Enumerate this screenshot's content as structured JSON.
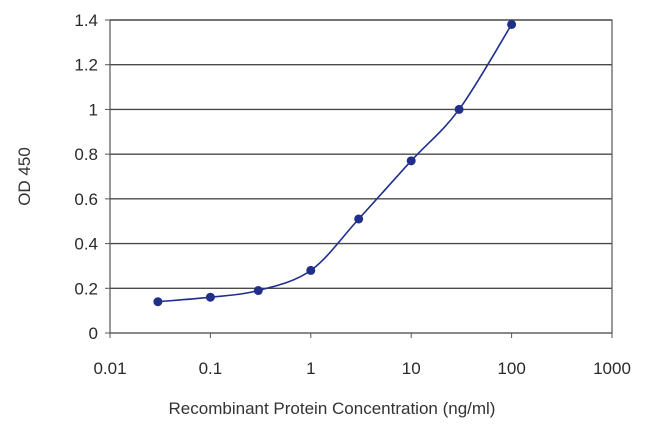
{
  "chart_data": {
    "type": "line",
    "title": "",
    "xlabel": "Recombinant Protein Concentration (ng/ml)",
    "ylabel": "OD 450",
    "x_scale": "log",
    "xlim": [
      0.01,
      1000
    ],
    "ylim": [
      0,
      1.4
    ],
    "x_ticks": [
      0.01,
      0.1,
      1,
      10,
      100,
      1000
    ],
    "x_tick_labels": [
      "0.01",
      "0.1",
      "1",
      "10",
      "100",
      "1000"
    ],
    "y_ticks": [
      0,
      0.2,
      0.4,
      0.6,
      0.8,
      1,
      1.2,
      1.4
    ],
    "y_tick_labels": [
      "0",
      "0.2",
      "0.4",
      "0.6",
      "0.8",
      "1",
      "1.2",
      "1.4"
    ],
    "grid": "horizontal",
    "legend": "none",
    "series": [
      {
        "x": [
          0.03,
          0.1,
          0.3,
          1,
          3,
          10,
          30,
          100
        ],
        "y": [
          0.14,
          0.16,
          0.19,
          0.28,
          0.51,
          0.77,
          1.0,
          1.38
        ],
        "color": "#1f2f8a"
      }
    ]
  }
}
